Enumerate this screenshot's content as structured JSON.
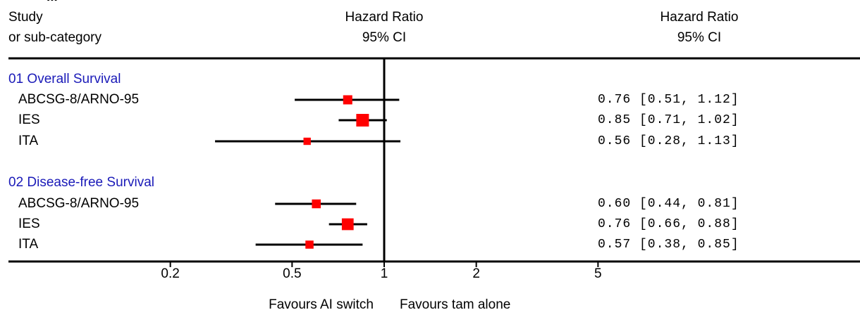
{
  "header": {
    "top_fragment": "...",
    "col_study_line1": "Study",
    "col_study_line2": "or sub-category",
    "col_plot_line1": "Hazard Ratio",
    "col_plot_line2": "95% CI",
    "col_value_line1": "Hazard Ratio",
    "col_value_line2": "95% CI"
  },
  "footer": {
    "favours_left": "Favours AI switch",
    "favours_right": "Favours tam alone"
  },
  "chart_data": {
    "type": "forest",
    "title": "",
    "xlabel": "",
    "ylabel": "",
    "xscale": "log",
    "xlim": [
      0.12,
      14
    ],
    "reference_line": 1,
    "ticks": [
      {
        "value": 0.2,
        "label": "0.2"
      },
      {
        "value": 0.5,
        "label": "0.5"
      },
      {
        "value": 1,
        "label": "1"
      },
      {
        "value": 2,
        "label": "2"
      },
      {
        "value": 5,
        "label": "5"
      }
    ],
    "grid": false,
    "legend": "none",
    "marker_color": "#ff0000",
    "line_color": "#000000",
    "groups": [
      {
        "name": "01 Overall Survival",
        "studies": [
          {
            "label": "ABCSG-8/ARNO-95",
            "hr": 0.76,
            "lower": 0.51,
            "upper": 1.12,
            "ci_text": "0.76 [0.51, 1.12]",
            "weight": 1.0
          },
          {
            "label": "IES",
            "hr": 0.85,
            "lower": 0.71,
            "upper": 1.02,
            "ci_text": "0.85 [0.71, 1.02]",
            "weight": 2.4
          },
          {
            "label": "ITA",
            "hr": 0.56,
            "lower": 0.28,
            "upper": 1.13,
            "ci_text": "0.56 [0.28, 1.13]",
            "weight": 0.5
          }
        ]
      },
      {
        "name": "02 Disease-free Survival",
        "studies": [
          {
            "label": "ABCSG-8/ARNO-95",
            "hr": 0.6,
            "lower": 0.44,
            "upper": 0.81,
            "ci_text": "0.60 [0.44, 0.81]",
            "weight": 0.9
          },
          {
            "label": "IES",
            "hr": 0.76,
            "lower": 0.66,
            "upper": 0.88,
            "ci_text": "0.76 [0.66, 0.88]",
            "weight": 2.0
          },
          {
            "label": "ITA",
            "hr": 0.57,
            "lower": 0.38,
            "upper": 0.85,
            "ci_text": "0.57 [0.38, 0.85]",
            "weight": 0.7
          }
        ]
      }
    ]
  }
}
